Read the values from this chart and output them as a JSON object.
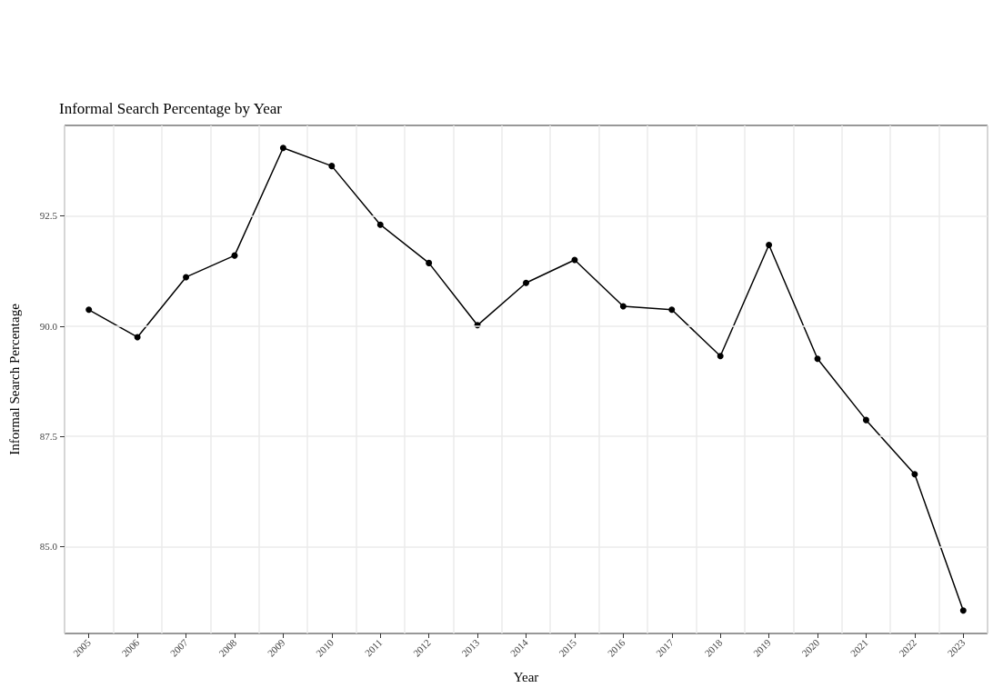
{
  "chart_data": {
    "type": "line",
    "title": "Informal Search Percentage by Year",
    "xlabel": "Year",
    "ylabel": "Informal Search Percentage",
    "categories": [
      "2005",
      "2006",
      "2007",
      "2008",
      "2009",
      "2010",
      "2011",
      "2012",
      "2013",
      "2014",
      "2015",
      "2016",
      "2017",
      "2018",
      "2019",
      "2020",
      "2021",
      "2022",
      "2023"
    ],
    "series": [
      {
        "color": "#000000",
        "values": [
          90.37,
          89.75,
          91.11,
          91.6,
          94.04,
          93.63,
          92.3,
          91.43,
          90.02,
          90.98,
          91.5,
          90.45,
          90.37,
          89.32,
          91.84,
          89.26,
          87.87,
          86.64,
          83.55
        ]
      }
    ],
    "ylim": [
      83.03,
      94.55
    ],
    "yticks": [
      {
        "value": 85,
        "label": "85.0"
      },
      {
        "value": 87.5,
        "label": "87.5"
      },
      {
        "value": 90,
        "label": "90.0"
      },
      {
        "value": 92.5,
        "label": "92.5"
      }
    ],
    "grid": true,
    "marker": "circle",
    "line_style": "solid"
  }
}
